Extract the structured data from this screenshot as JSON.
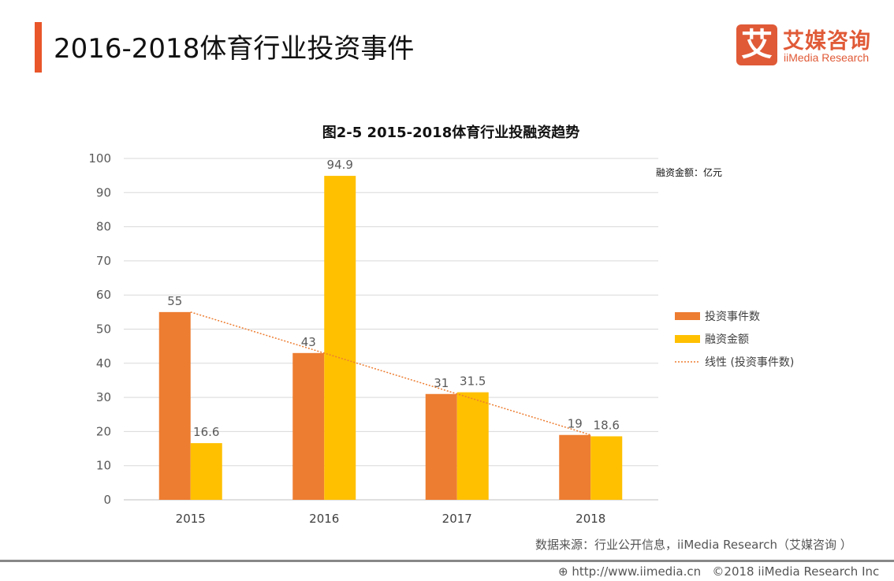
{
  "header": {
    "title": "2016-2018体育行业投资事件",
    "accent_color": "#e8562a"
  },
  "logo": {
    "mark": "艾",
    "cn": "艾媒咨询",
    "en": "iiMedia Research",
    "color": "#e05a37"
  },
  "chart_data": {
    "type": "bar",
    "title": "图2-5 2015-2018体育行业投融资趋势",
    "unit_note": "融资金额：亿元",
    "categories": [
      "2015",
      "2016",
      "2017",
      "2018"
    ],
    "ylim": [
      0,
      100
    ],
    "yticks": [
      0,
      10,
      20,
      30,
      40,
      50,
      60,
      70,
      80,
      90,
      100
    ],
    "grid": true,
    "legend_position": "right",
    "series": [
      {
        "name": "投资事件数",
        "values": [
          55,
          43,
          31,
          19
        ],
        "color": "#ed7d31"
      },
      {
        "name": "融资金额",
        "values": [
          16.6,
          94.9,
          31.5,
          18.6
        ],
        "color": "#ffc000"
      }
    ],
    "trendline": {
      "name": "线性 (投资事件数)",
      "type": "linear",
      "of": "投资事件数",
      "values": [
        55,
        43,
        31,
        19
      ],
      "color": "#ed7d31"
    }
  },
  "footer": {
    "source": "数据来源：行业公开信息，iiMedia Research（艾媒咨询 ）",
    "url": "http://www.iimedia.cn",
    "copyright": "©2018 iiMedia Research Inc",
    "icon": "globe-cursor-icon"
  }
}
